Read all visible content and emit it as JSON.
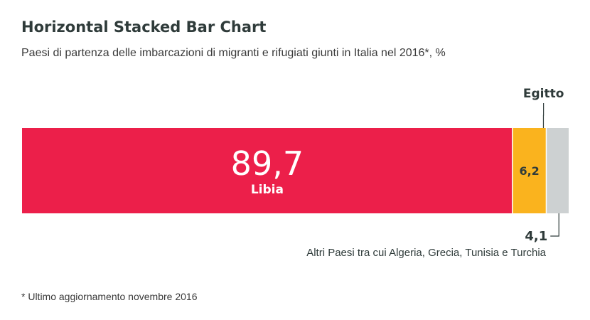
{
  "chart_data": {
    "type": "bar",
    "orientation": "horizontal",
    "stacked": true,
    "title": "Horizontal Stacked Bar Chart",
    "subtitle": "Paesi di partenza delle imbarcazioni di migranti e rifugiati giunti in Italia nel 2016*, %",
    "footnote": "* Ultimo aggiornamento novembre 2016",
    "xlim": [
      0,
      100
    ],
    "grid": false,
    "legend": "none",
    "series": [
      {
        "name": "Libia",
        "value": 89.7,
        "value_label": "89,7",
        "color": "#ec1f4a"
      },
      {
        "name": "Egitto",
        "value": 6.2,
        "value_label": "6,2",
        "color": "#fab31e"
      },
      {
        "name": "Altri Paesi tra cui Algeria, Grecia, Tunisia e Turchia",
        "value": 4.1,
        "value_label": "4,1",
        "color": "#cdd1d2"
      }
    ]
  }
}
